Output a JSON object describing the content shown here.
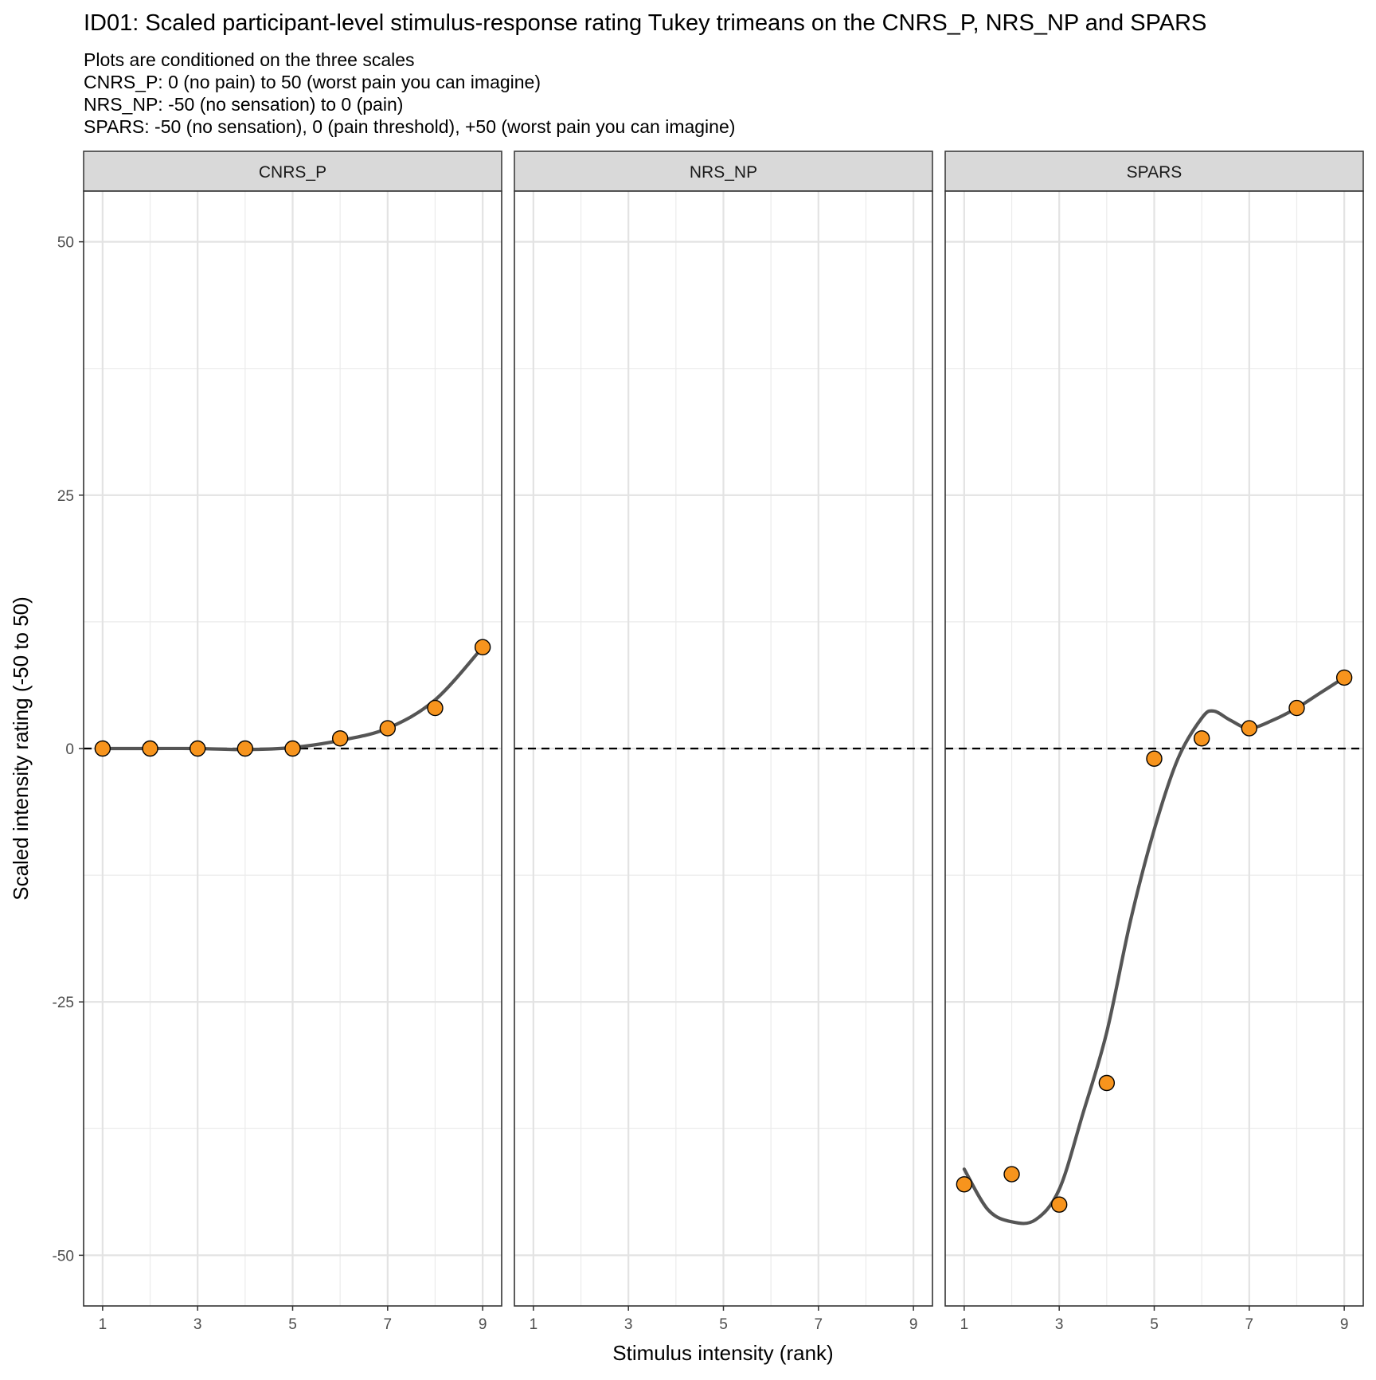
{
  "chart_data": {
    "type": "scatter",
    "title": "ID01: Scaled participant-level stimulus-response rating Tukey trimeans on the CNRS_P, NRS_NP and SPARS",
    "subtitle": [
      "Plots are conditioned on the three scales",
      "CNRS_P: 0 (no pain) to 50 (worst pain you can imagine)",
      "NRS_NP: -50 (no sensation) to 0 (pain)",
      "SPARS: -50 (no sensation), 0 (pain threshold), +50 (worst pain you can imagine)"
    ],
    "xlabel": "Stimulus intensity (rank)",
    "ylabel": "Scaled intensity rating (-50 to 50)",
    "xlim": [
      0.6,
      9.4
    ],
    "ylim": [
      -55,
      55
    ],
    "x_ticks": [
      1,
      3,
      5,
      7,
      9
    ],
    "y_ticks": [
      -50,
      -25,
      0,
      25,
      50
    ],
    "grid": true,
    "reference_line_y": 0,
    "point_color": "#F7941D",
    "line_color": "#555555",
    "facets": [
      {
        "label": "CNRS_P",
        "x": [
          1,
          2,
          3,
          4,
          5,
          6,
          7,
          8,
          9
        ],
        "y": [
          0,
          0,
          0,
          0,
          0,
          1,
          2,
          4,
          10
        ],
        "curve": [
          [
            1,
            0
          ],
          [
            2,
            0
          ],
          [
            3,
            0
          ],
          [
            4,
            -0.1
          ],
          [
            5,
            0.1
          ],
          [
            6,
            0.8
          ],
          [
            7,
            2
          ],
          [
            8,
            4.8
          ],
          [
            9,
            10
          ]
        ]
      },
      {
        "label": "NRS_NP",
        "x": [],
        "y": [],
        "curve": []
      },
      {
        "label": "SPARS",
        "x": [
          1,
          2,
          3,
          4,
          5,
          6,
          7,
          8,
          9
        ],
        "y": [
          -43,
          -42,
          -45,
          -33,
          -1,
          1,
          2,
          4,
          7
        ],
        "curve": [
          [
            1,
            -41.5
          ],
          [
            1.5,
            -45.5
          ],
          [
            2,
            -46.7
          ],
          [
            2.5,
            -46.5
          ],
          [
            3,
            -43.5
          ],
          [
            3.5,
            -36
          ],
          [
            4,
            -28
          ],
          [
            4.5,
            -17
          ],
          [
            5,
            -8
          ],
          [
            5.5,
            -1
          ],
          [
            6,
            3
          ],
          [
            6.25,
            3.7
          ],
          [
            6.6,
            2.8
          ],
          [
            7,
            2
          ],
          [
            7.5,
            2.8
          ],
          [
            8,
            4
          ],
          [
            8.5,
            5.5
          ],
          [
            9,
            7
          ]
        ]
      }
    ]
  }
}
